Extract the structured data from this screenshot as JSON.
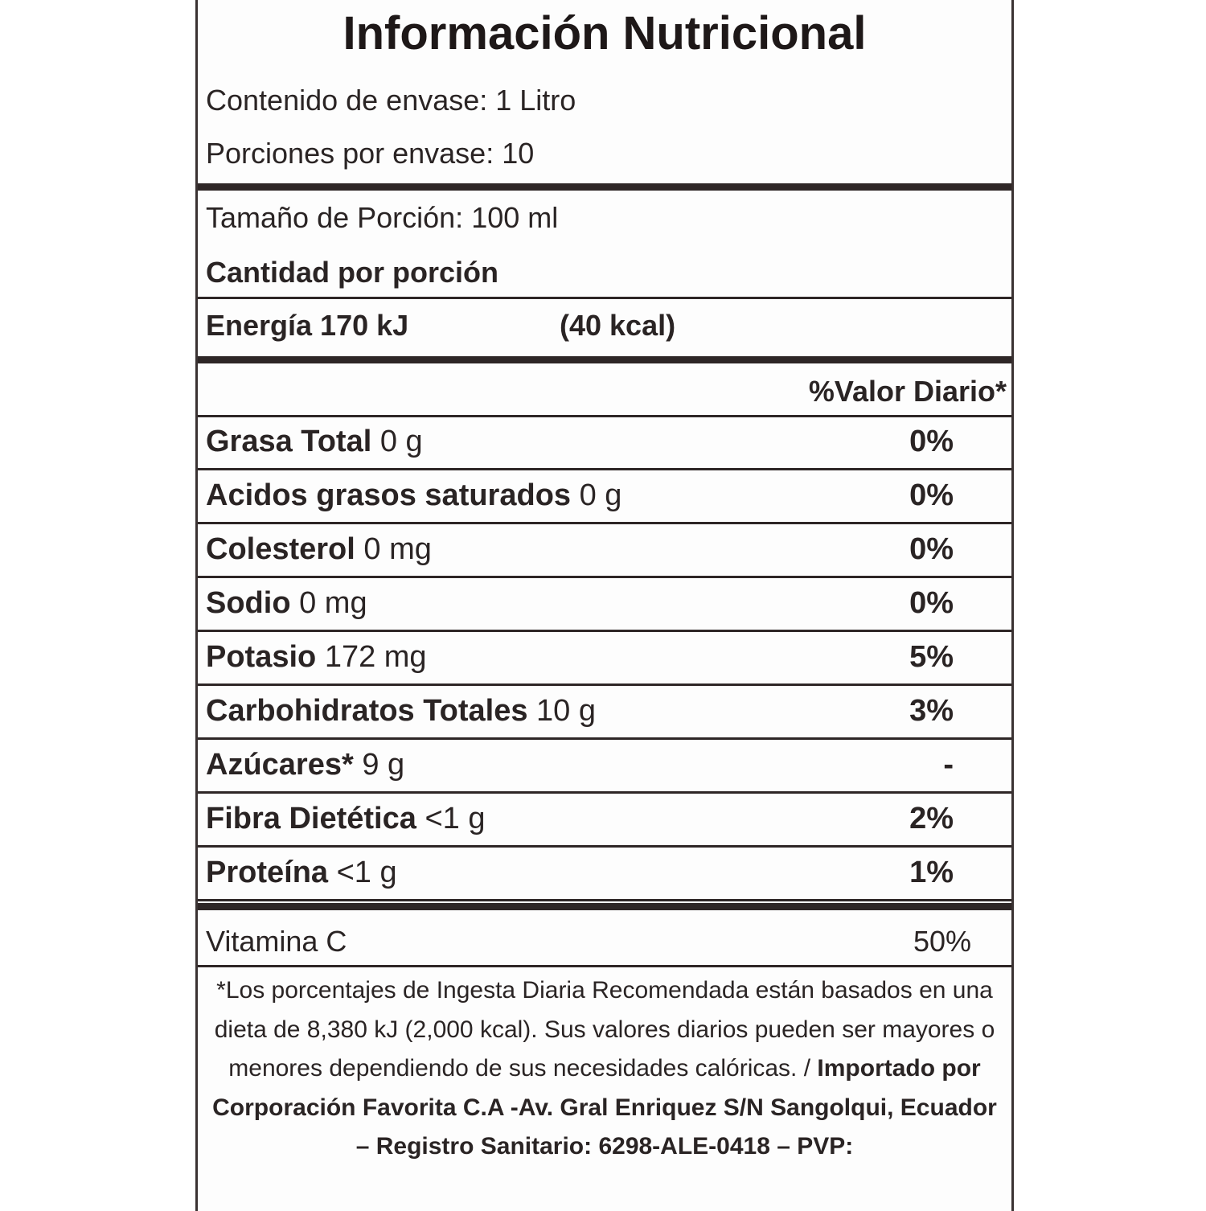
{
  "title": "Información Nutricional",
  "container_content": "Contenido de envase: 1 Litro",
  "servings_per_container": "Porciones por envase: 10",
  "serving_size": "Tamaño de Porción: 100 ml",
  "amount_per_serving": "Cantidad por porción",
  "energy": {
    "kj": "Energía 170 kJ",
    "kcal": "(40 kcal)"
  },
  "daily_value_header": "%Valor Diario*",
  "nutrients": [
    {
      "name": "Grasa Total",
      "amount": "0 g",
      "dv": "0%"
    },
    {
      "name": "Acidos grasos saturados",
      "amount": "0 g",
      "dv": "0%"
    },
    {
      "name": "Colesterol",
      "amount": "0 mg",
      "dv": "0%"
    },
    {
      "name": "Sodio",
      "amount": "0 mg",
      "dv": "0%"
    },
    {
      "name": "Potasio",
      "amount": "172 mg",
      "dv": "5%"
    },
    {
      "name": "Carbohidratos Totales",
      "amount": "10 g",
      "dv": "3%"
    },
    {
      "name": "Azúcares*",
      "amount": "9 g",
      "dv": "-"
    },
    {
      "name": "Fibra Dietética",
      "amount": "<1 g",
      "dv": "2%"
    },
    {
      "name": "Proteína",
      "amount": "<1 g",
      "dv": "1%"
    }
  ],
  "vitamin": {
    "name": "Vitamina C",
    "dv": "50%"
  },
  "footnote": {
    "text": "*Los porcentajes de Ingesta Diaria Recomendada están  basados en una dieta de 8,380 kJ (2,000 kcal). Sus valores diarios pueden ser mayores o menores dependiendo de sus necesidades calóricas. /",
    "importer": "Importado por Corporación Favorita C.A -Av. Gral Enriquez S/N Sangolqui, Ecuador  – Registro Sanitario: 6298-ALE-0418 – PVP:"
  }
}
